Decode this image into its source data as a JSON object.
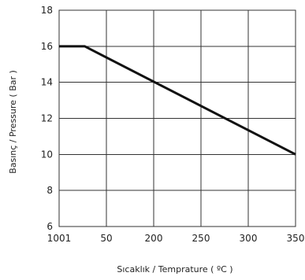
{
  "chart_data": {
    "type": "line",
    "xlabel": "Sıcaklık / Temprature ( ºC )",
    "ylabel": "Basınç / Pressure ( Bar )",
    "x_ticks": [
      {
        "value": 0,
        "label": "1001"
      },
      {
        "value": 50,
        "label": "50"
      },
      {
        "value": 100,
        "label": "200"
      },
      {
        "value": 150,
        "label": "250"
      },
      {
        "value": 200,
        "label": "300"
      },
      {
        "value": 250,
        "label": "350"
      }
    ],
    "y_ticks": [
      {
        "value": 6,
        "label": "6"
      },
      {
        "value": 8,
        "label": "8"
      },
      {
        "value": 10,
        "label": "10"
      },
      {
        "value": 12,
        "label": "12"
      },
      {
        "value": 14,
        "label": "14"
      },
      {
        "value": 16,
        "label": "16"
      },
      {
        "value": 18,
        "label": "18"
      }
    ],
    "xlim": [
      0,
      250
    ],
    "ylim": [
      6,
      18
    ],
    "grid": true,
    "series": [
      {
        "color": "#111111",
        "points": [
          {
            "x": 0,
            "y": 16
          },
          {
            "x": 27,
            "y": 16
          },
          {
            "x": 250,
            "y": 10
          }
        ]
      }
    ]
  }
}
